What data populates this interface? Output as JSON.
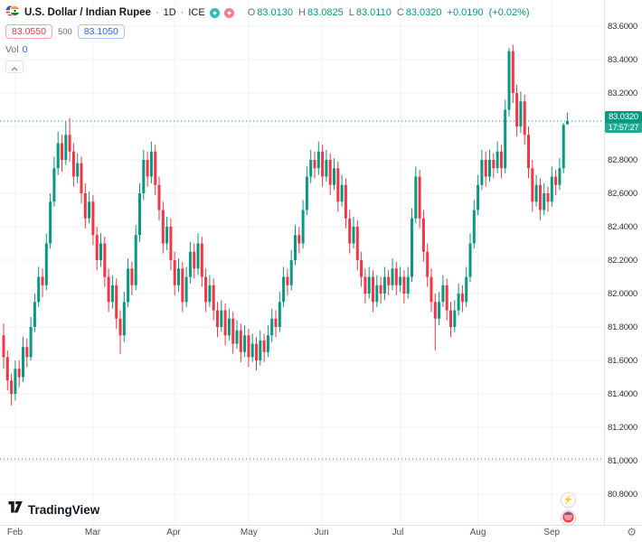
{
  "colors": {
    "up": "#089981",
    "down": "#F23645",
    "buy_blue": "#2962FF",
    "grid": "#F0F3FA",
    "axis_border": "#E0E3EB",
    "text": "#131722",
    "muted": "#6A6D78",
    "badge": "#089981",
    "badge_countdown": "#22AB94",
    "purple": "#A245D6",
    "chip_teal": "#2DBDB6",
    "chip_pink": "#F77E87"
  },
  "header": {
    "symbol_title": "U.S. Dollar / Indian Rupee",
    "separator": "·",
    "timeframe": "1D",
    "exchange": "ICE",
    "ohlc": {
      "o_label": "O",
      "o_value": "83.0130",
      "h_label": "H",
      "h_value": "83.0825",
      "l_label": "L",
      "l_value": "83.0110",
      "c_label": "C",
      "c_value": "83.0320",
      "change": "+0.0190",
      "change_pct": "(+0.02%)"
    },
    "sell_price": "83.0550",
    "spread": "500",
    "buy_price": "83.1050",
    "vol_label": "Vol",
    "vol_value": "0"
  },
  "price_axis": {
    "ticks": [
      "83.6000",
      "83.4000",
      "83.2000",
      "82.8000",
      "82.6000",
      "82.4000",
      "82.2000",
      "82.0000",
      "81.8000",
      "81.6000",
      "81.4000",
      "81.2000",
      "81.0000",
      "80.8000"
    ],
    "current_price": "83.0320",
    "countdown": "17:57:27"
  },
  "time_axis": {
    "months": [
      {
        "label": "Feb",
        "bar": 3
      },
      {
        "label": "Mar",
        "bar": 23
      },
      {
        "label": "Apr",
        "bar": 44
      },
      {
        "label": "May",
        "bar": 63
      },
      {
        "label": "Jun",
        "bar": 82
      },
      {
        "label": "Jul",
        "bar": 102
      },
      {
        "label": "Aug",
        "bar": 122
      },
      {
        "label": "Sep",
        "bar": 141
      }
    ]
  },
  "logo": {
    "text": "TradingView"
  },
  "chart_data": {
    "type": "candlestick",
    "title": "U.S. Dollar / Indian Rupee",
    "timeframe": "1D",
    "exchange": "ICE",
    "y_range": [
      80.77,
      83.66
    ],
    "grid_prices": [
      83.6,
      83.4,
      83.2,
      83.0,
      82.8,
      82.6,
      82.4,
      82.2,
      82.0,
      81.8,
      81.6,
      81.4,
      81.2,
      81.0,
      80.8
    ],
    "levels": [
      {
        "price": 83.032,
        "color": "up",
        "style": "dotted",
        "label": "current-price"
      },
      {
        "price": 81.01,
        "color": "down",
        "style": "dotted",
        "label": "prior-low"
      }
    ],
    "last_bar": {
      "open": 83.013,
      "high": 83.0825,
      "low": 83.011,
      "close": 83.032,
      "change": 0.019,
      "change_pct": 0.02
    },
    "columns": [
      "open",
      "high",
      "low",
      "close"
    ],
    "candles": [
      [
        81.75,
        81.82,
        81.55,
        81.62
      ],
      [
        81.62,
        81.66,
        81.42,
        81.48
      ],
      [
        81.48,
        81.52,
        81.33,
        81.4
      ],
      [
        81.4,
        81.6,
        81.36,
        81.55
      ],
      [
        81.55,
        81.6,
        81.44,
        81.5
      ],
      [
        81.5,
        81.74,
        81.47,
        81.68
      ],
      [
        81.68,
        81.73,
        81.56,
        81.62
      ],
      [
        81.62,
        81.86,
        81.6,
        81.8
      ],
      [
        81.8,
        82.0,
        81.77,
        81.95
      ],
      [
        81.95,
        82.16,
        81.92,
        82.1
      ],
      [
        82.1,
        82.15,
        81.98,
        82.05
      ],
      [
        82.05,
        82.36,
        82.02,
        82.3
      ],
      [
        82.3,
        82.6,
        82.27,
        82.55
      ],
      [
        82.55,
        82.82,
        82.52,
        82.75
      ],
      [
        82.75,
        82.97,
        82.71,
        82.9
      ],
      [
        82.9,
        82.95,
        82.73,
        82.8
      ],
      [
        82.8,
        83.03,
        82.77,
        82.95
      ],
      [
        82.95,
        83.05,
        82.79,
        82.85
      ],
      [
        82.85,
        82.9,
        82.64,
        82.7
      ],
      [
        82.7,
        82.84,
        82.66,
        82.78
      ],
      [
        82.78,
        82.82,
        82.54,
        82.6
      ],
      [
        82.6,
        82.66,
        82.39,
        82.45
      ],
      [
        82.45,
        82.61,
        82.42,
        82.55
      ],
      [
        82.55,
        82.59,
        82.29,
        82.35
      ],
      [
        82.35,
        82.4,
        82.14,
        82.2
      ],
      [
        82.2,
        82.36,
        82.16,
        82.3
      ],
      [
        82.3,
        82.34,
        82.04,
        82.1
      ],
      [
        82.1,
        82.15,
        81.89,
        81.95
      ],
      [
        81.95,
        82.11,
        81.91,
        82.05
      ],
      [
        82.05,
        82.09,
        81.79,
        81.85
      ],
      [
        81.85,
        81.9,
        81.64,
        81.75
      ],
      [
        81.75,
        82.01,
        81.71,
        81.95
      ],
      [
        81.95,
        82.21,
        81.92,
        82.15
      ],
      [
        82.15,
        82.19,
        81.99,
        82.05
      ],
      [
        82.05,
        82.41,
        82.02,
        82.35
      ],
      [
        82.35,
        82.66,
        82.31,
        82.6
      ],
      [
        82.6,
        82.86,
        82.56,
        82.8
      ],
      [
        82.8,
        82.85,
        82.64,
        82.7
      ],
      [
        82.7,
        82.91,
        82.66,
        82.85
      ],
      [
        82.85,
        82.89,
        82.59,
        82.65
      ],
      [
        82.65,
        82.7,
        82.44,
        82.5
      ],
      [
        82.5,
        82.55,
        82.24,
        82.3
      ],
      [
        82.3,
        82.46,
        82.26,
        82.4
      ],
      [
        82.4,
        82.45,
        82.14,
        82.2
      ],
      [
        82.2,
        82.25,
        81.99,
        82.05
      ],
      [
        82.05,
        82.21,
        82.01,
        82.15
      ],
      [
        82.15,
        82.19,
        81.89,
        81.95
      ],
      [
        81.95,
        82.16,
        81.92,
        82.1
      ],
      [
        82.1,
        82.31,
        82.06,
        82.25
      ],
      [
        82.25,
        82.3,
        82.09,
        82.15
      ],
      [
        82.15,
        82.36,
        82.11,
        82.3
      ],
      [
        82.3,
        82.34,
        82.04,
        82.1
      ],
      [
        82.1,
        82.15,
        81.89,
        81.95
      ],
      [
        81.95,
        82.11,
        81.92,
        82.05
      ],
      [
        82.05,
        82.09,
        81.84,
        81.9
      ],
      [
        81.9,
        81.95,
        81.74,
        81.8
      ],
      [
        81.8,
        81.96,
        81.77,
        81.9
      ],
      [
        81.9,
        81.94,
        81.69,
        81.75
      ],
      [
        81.75,
        81.91,
        81.72,
        81.85
      ],
      [
        81.85,
        81.89,
        81.64,
        81.7
      ],
      [
        81.7,
        81.84,
        81.67,
        81.78
      ],
      [
        81.78,
        81.82,
        81.59,
        81.65
      ],
      [
        81.65,
        81.81,
        81.62,
        81.75
      ],
      [
        81.75,
        81.79,
        81.56,
        81.62
      ],
      [
        81.62,
        81.76,
        81.59,
        81.7
      ],
      [
        81.7,
        81.74,
        81.54,
        81.6
      ],
      [
        81.6,
        81.78,
        81.57,
        81.72
      ],
      [
        81.72,
        81.76,
        81.59,
        81.65
      ],
      [
        81.65,
        81.81,
        81.62,
        81.75
      ],
      [
        81.75,
        81.91,
        81.71,
        81.85
      ],
      [
        81.85,
        81.9,
        81.74,
        81.8
      ],
      [
        81.8,
        82.01,
        81.77,
        81.95
      ],
      [
        81.95,
        82.16,
        81.92,
        82.1
      ],
      [
        82.1,
        82.15,
        81.99,
        82.05
      ],
      [
        82.05,
        82.26,
        82.02,
        82.2
      ],
      [
        82.2,
        82.41,
        82.17,
        82.35
      ],
      [
        82.35,
        82.4,
        82.24,
        82.3
      ],
      [
        82.3,
        82.56,
        82.27,
        82.5
      ],
      [
        82.5,
        82.76,
        82.47,
        82.7
      ],
      [
        82.7,
        82.86,
        82.66,
        82.8
      ],
      [
        82.8,
        82.85,
        82.69,
        82.75
      ],
      [
        82.75,
        82.91,
        82.71,
        82.85
      ],
      [
        82.85,
        82.89,
        82.64,
        82.7
      ],
      [
        82.7,
        82.86,
        82.67,
        82.8
      ],
      [
        82.8,
        82.84,
        82.59,
        82.65
      ],
      [
        82.65,
        82.81,
        82.62,
        82.75
      ],
      [
        82.75,
        82.79,
        82.49,
        82.55
      ],
      [
        82.55,
        82.71,
        82.52,
        82.65
      ],
      [
        82.65,
        82.69,
        82.39,
        82.45
      ],
      [
        82.45,
        82.5,
        82.24,
        82.3
      ],
      [
        82.3,
        82.46,
        82.27,
        82.4
      ],
      [
        82.4,
        82.44,
        82.14,
        82.2
      ],
      [
        82.2,
        82.25,
        82.04,
        82.1
      ],
      [
        82.1,
        82.15,
        81.94,
        82.0
      ],
      [
        82.0,
        82.16,
        81.97,
        82.1
      ],
      [
        82.1,
        82.14,
        81.89,
        81.95
      ],
      [
        81.95,
        82.11,
        81.92,
        82.05
      ],
      [
        82.05,
        82.1,
        81.94,
        82.0
      ],
      [
        82.0,
        82.16,
        81.96,
        82.1
      ],
      [
        82.1,
        82.14,
        81.99,
        82.05
      ],
      [
        82.05,
        82.21,
        82.02,
        82.15
      ],
      [
        82.15,
        82.19,
        81.99,
        82.05
      ],
      [
        82.05,
        82.16,
        82.01,
        82.1
      ],
      [
        82.1,
        82.14,
        81.94,
        82.0
      ],
      [
        82.0,
        82.16,
        81.97,
        82.1
      ],
      [
        82.1,
        82.51,
        82.07,
        82.45
      ],
      [
        82.45,
        82.76,
        82.42,
        82.7
      ],
      [
        82.7,
        82.74,
        82.39,
        82.45
      ],
      [
        82.45,
        82.5,
        82.19,
        82.25
      ],
      [
        82.25,
        82.3,
        82.04,
        82.1
      ],
      [
        82.1,
        82.15,
        81.89,
        81.95
      ],
      [
        81.95,
        82.0,
        81.66,
        81.85
      ],
      [
        81.85,
        82.01,
        81.81,
        81.95
      ],
      [
        81.95,
        82.11,
        81.92,
        82.05
      ],
      [
        82.05,
        82.09,
        81.84,
        81.9
      ],
      [
        81.9,
        81.95,
        81.74,
        81.8
      ],
      [
        81.8,
        81.96,
        81.77,
        81.9
      ],
      [
        81.9,
        82.06,
        81.87,
        82.0
      ],
      [
        82.0,
        82.05,
        81.89,
        81.95
      ],
      [
        81.95,
        82.16,
        81.92,
        82.1
      ],
      [
        82.1,
        82.36,
        82.07,
        82.3
      ],
      [
        82.3,
        82.56,
        82.27,
        82.5
      ],
      [
        82.5,
        82.71,
        82.47,
        82.65
      ],
      [
        82.65,
        82.86,
        82.62,
        82.8
      ],
      [
        82.8,
        82.85,
        82.64,
        82.7
      ],
      [
        82.7,
        82.86,
        82.67,
        82.8
      ],
      [
        82.8,
        82.84,
        82.69,
        82.75
      ],
      [
        82.75,
        82.91,
        82.72,
        82.85
      ],
      [
        82.85,
        82.89,
        82.69,
        82.75
      ],
      [
        82.75,
        83.16,
        82.72,
        83.1
      ],
      [
        83.1,
        83.47,
        83.06,
        83.45
      ],
      [
        83.45,
        83.49,
        83.14,
        83.2
      ],
      [
        83.2,
        83.25,
        82.94,
        83.0
      ],
      [
        83.0,
        83.21,
        82.96,
        83.15
      ],
      [
        83.15,
        83.19,
        82.89,
        82.95
      ],
      [
        82.95,
        83.0,
        82.69,
        82.75
      ],
      [
        82.75,
        82.8,
        82.49,
        82.55
      ],
      [
        82.55,
        82.71,
        82.52,
        82.65
      ],
      [
        82.65,
        82.69,
        82.44,
        82.5
      ],
      [
        82.5,
        82.66,
        82.47,
        82.6
      ],
      [
        82.6,
        82.64,
        82.49,
        82.55
      ],
      [
        82.55,
        82.76,
        82.52,
        82.7
      ],
      [
        82.7,
        82.74,
        82.59,
        82.65
      ],
      [
        82.65,
        82.81,
        82.62,
        82.75
      ],
      [
        82.75,
        83.02,
        82.72,
        83.01
      ],
      [
        83.013,
        83.0825,
        83.011,
        83.032
      ]
    ]
  }
}
